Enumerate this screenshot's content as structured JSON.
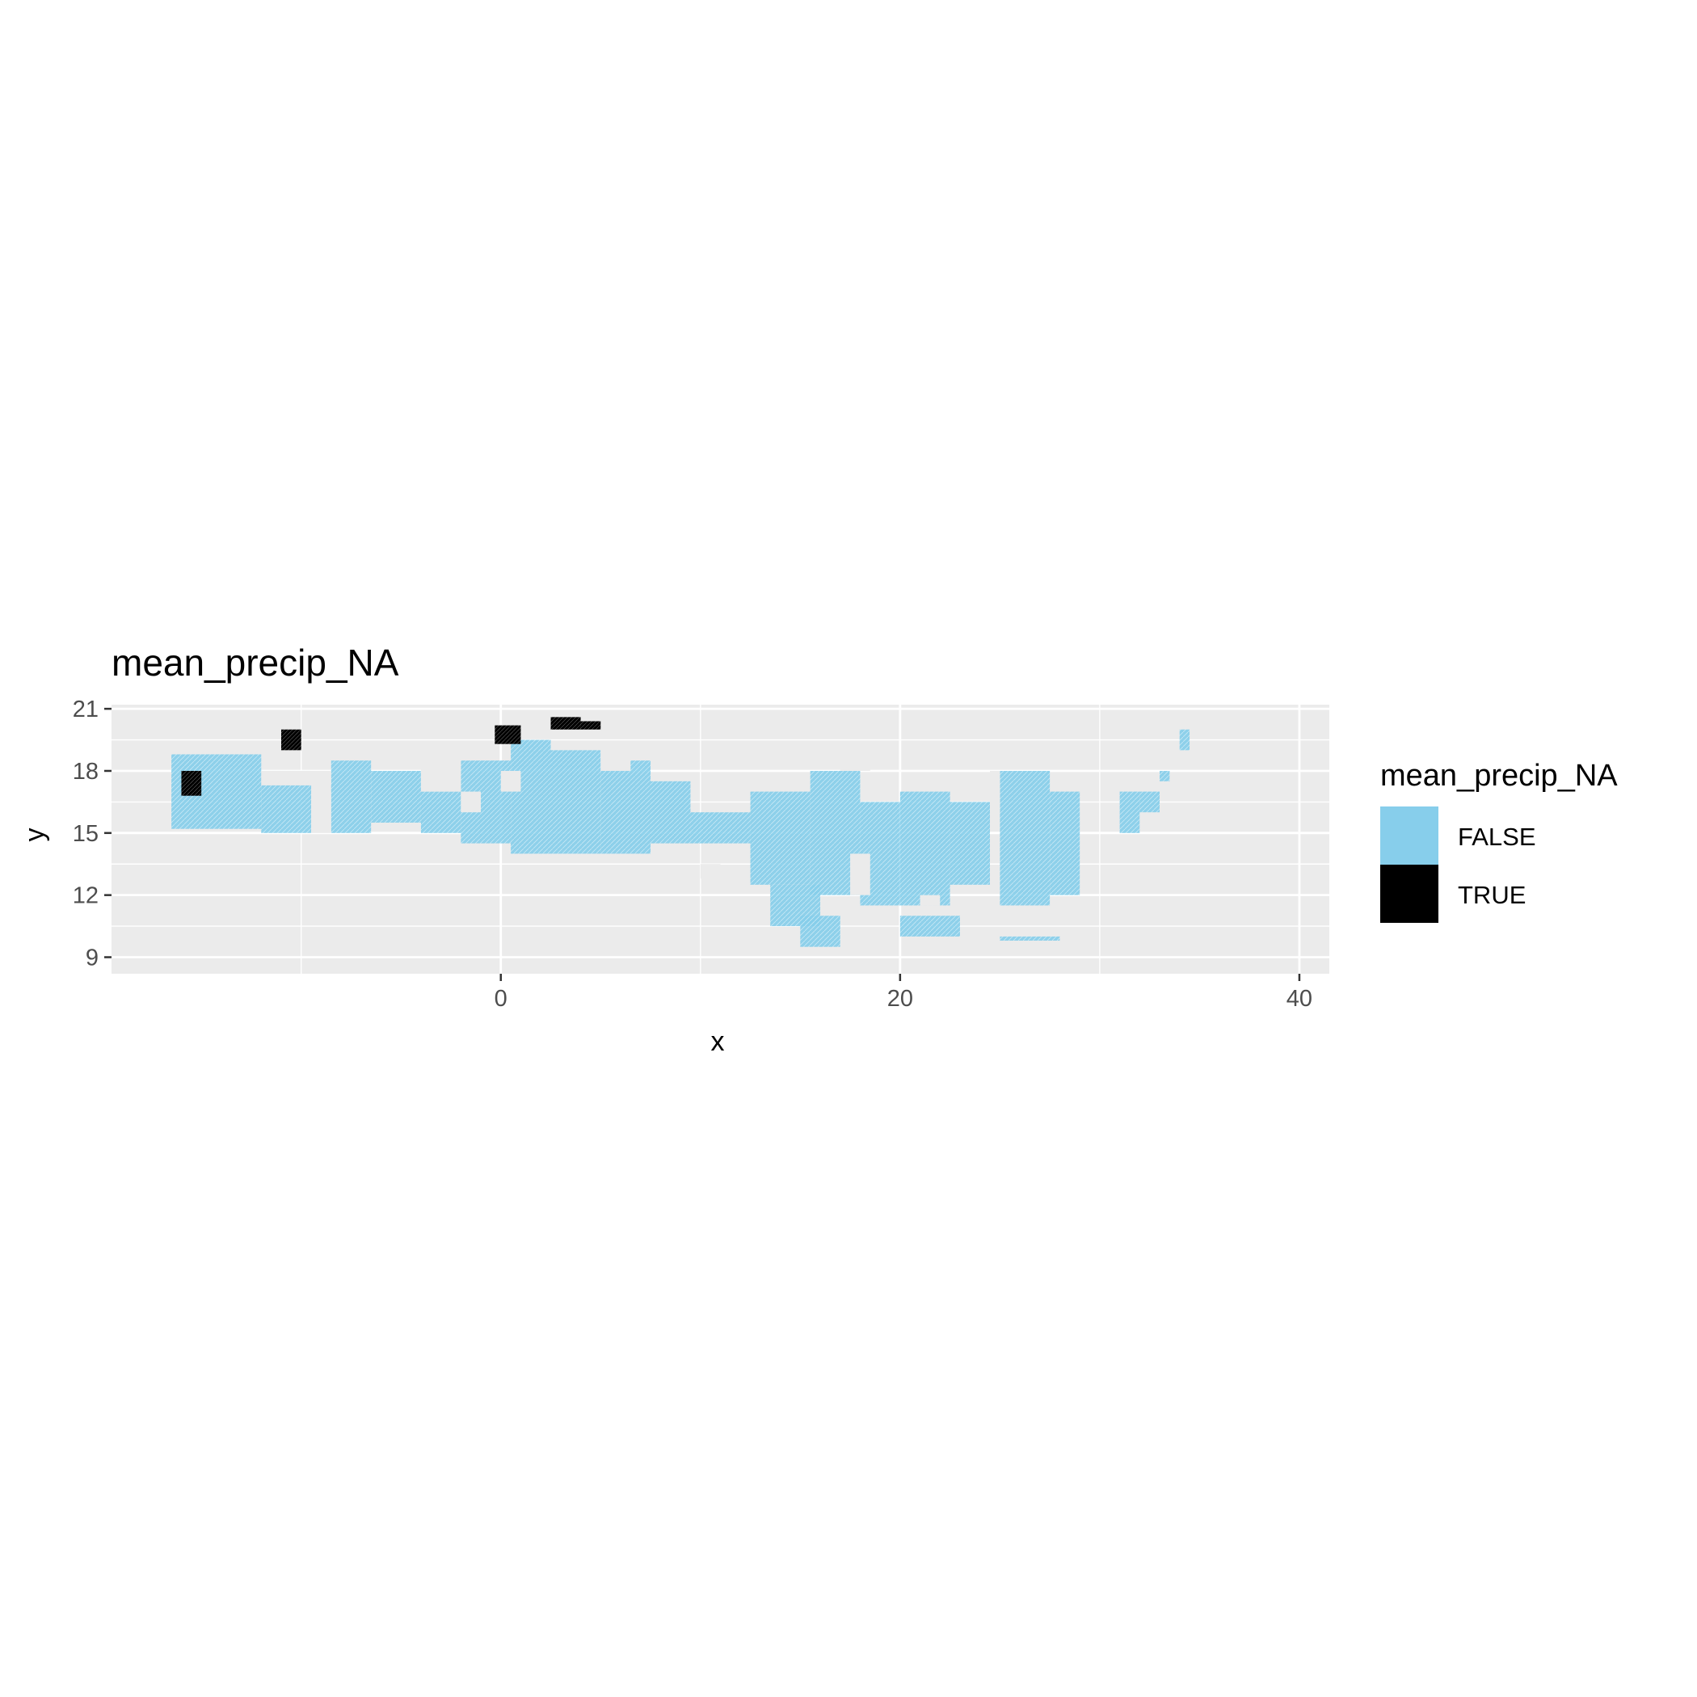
{
  "chart_data": {
    "type": "heatmap",
    "title": "mean_precip_NA",
    "xlabel": "x",
    "ylabel": "y",
    "xlim": [
      -19.5,
      41.5
    ],
    "ylim": [
      8.2,
      21.2
    ],
    "x_ticks": [
      0,
      20,
      40
    ],
    "y_ticks": [
      9,
      12,
      15,
      18,
      21
    ],
    "x_minor": [
      -10,
      10,
      30
    ],
    "y_minor": [
      10.5,
      13.5,
      16.5,
      19.5
    ],
    "grid": true,
    "legend": {
      "title": "mean_precip_NA",
      "position": "right",
      "entries": [
        {
          "label": "FALSE",
          "color": "#87CEEB"
        },
        {
          "label": "TRUE",
          "color": "#000000"
        }
      ]
    },
    "colors": {
      "FALSE": "#87CEEB",
      "TRUE": "#000000",
      "panel": "#EBEBEB",
      "grid": "#FFFFFF"
    },
    "regions_false": [
      [
        -16.5,
        15.2,
        -12.0,
        18.8
      ],
      [
        -12.0,
        15.0,
        -9.5,
        18.0
      ],
      [
        -8.5,
        15.0,
        -6.5,
        18.5
      ],
      [
        -6.5,
        15.5,
        -4.0,
        18.0
      ],
      [
        -4.0,
        15.0,
        -2.0,
        17.0
      ],
      [
        -2.0,
        14.5,
        0.5,
        18.5
      ],
      [
        0.5,
        14.0,
        2.5,
        19.5
      ],
      [
        2.5,
        14.0,
        5.0,
        19.0
      ],
      [
        5.0,
        14.0,
        7.5,
        18.5
      ],
      [
        7.5,
        14.5,
        9.5,
        17.5
      ],
      [
        9.5,
        14.5,
        12.5,
        16.0
      ],
      [
        12.5,
        12.5,
        15.5,
        17.0
      ],
      [
        15.5,
        12.0,
        18.0,
        18.0
      ],
      [
        13.5,
        10.5,
        16.0,
        12.5
      ],
      [
        15.0,
        9.5,
        17.0,
        11.0
      ],
      [
        18.0,
        11.5,
        20.0,
        16.5
      ],
      [
        20.0,
        11.5,
        22.5,
        17.0
      ],
      [
        22.5,
        12.5,
        24.5,
        16.5
      ],
      [
        20.0,
        10.0,
        23.0,
        11.0
      ],
      [
        25.0,
        11.5,
        27.5,
        18.0
      ],
      [
        27.5,
        12.0,
        29.0,
        17.0
      ],
      [
        31.0,
        15.0,
        32.0,
        17.0
      ],
      [
        32.0,
        16.0,
        33.0,
        17.0
      ],
      [
        33.0,
        17.5,
        33.5,
        18.0
      ],
      [
        34.0,
        19.0,
        34.5,
        20.0
      ],
      [
        25.0,
        9.8,
        28.0,
        10.0
      ]
    ],
    "regions_true": [
      [
        -16.0,
        16.8,
        -15.0,
        18.0
      ],
      [
        -11.0,
        19.0,
        -10.0,
        20.0
      ],
      [
        -0.3,
        19.3,
        1.0,
        20.2
      ],
      [
        2.5,
        20.0,
        4.0,
        20.6
      ],
      [
        4.0,
        20.0,
        5.0,
        20.4
      ]
    ],
    "gaps": [
      [
        -12.0,
        17.3,
        -8.5,
        18.0
      ],
      [
        -9.5,
        15.0,
        -8.5,
        17.0
      ],
      [
        -4.0,
        17.0,
        -2.0,
        18.5
      ],
      [
        0.0,
        17.0,
        1.0,
        18.0
      ],
      [
        -2.0,
        16.0,
        -1.0,
        17.0
      ],
      [
        10.0,
        12.8,
        11.0,
        13.5
      ],
      [
        17.0,
        18.0,
        18.5,
        19.0
      ],
      [
        17.5,
        12.0,
        18.5,
        14.0
      ],
      [
        21.0,
        11.5,
        22.0,
        12.0
      ],
      [
        24.5,
        16.0,
        25.0,
        18.0
      ],
      [
        5.0,
        18.0,
        6.5,
        19.0
      ]
    ]
  }
}
